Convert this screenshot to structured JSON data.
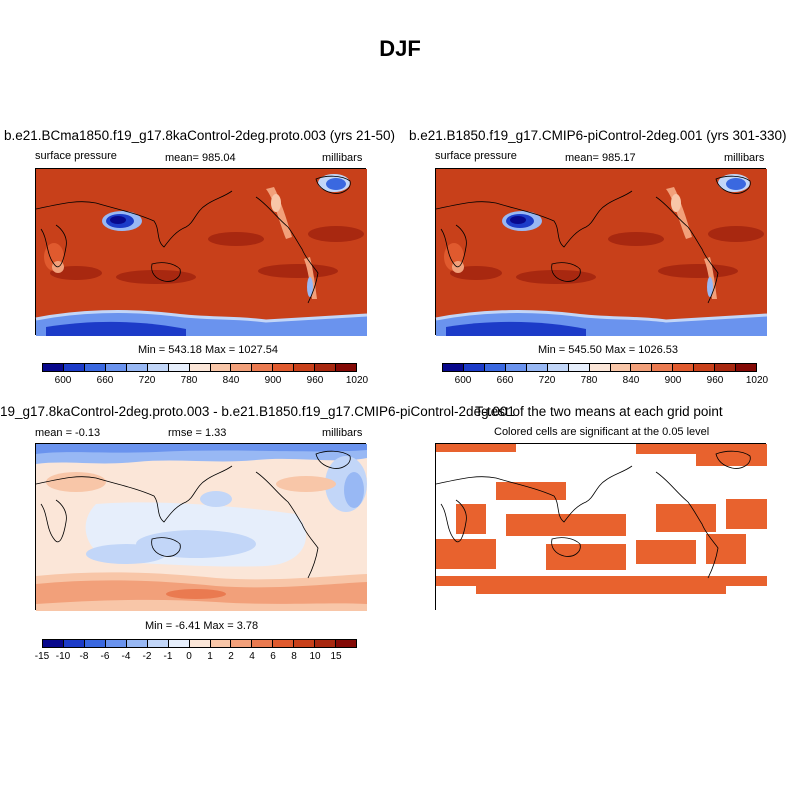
{
  "title": "DJF",
  "panels": {
    "p1": {
      "title": "b.e21.BCma1850.f19_g17.8kaControl-2deg.proto.003 (yrs 21-50)",
      "left": "surface pressure",
      "center": "mean= 985.04",
      "right": "millibars",
      "minmax": "Min = 543.18 Max = 1027.54"
    },
    "p2": {
      "title": "b.e21.B1850.f19_g17.CMIP6-piControl-2deg.001 (yrs 301-330)",
      "left": "surface pressure",
      "center": "mean= 985.17",
      "right": "millibars",
      "minmax": "Min = 545.50 Max = 1026.53"
    },
    "p3": {
      "title": "19_g17.8kaControl-2deg.proto.003 - b.e21.B1850.f19_g17.CMIP6-piControl-2deg.001",
      "left": "mean =  -0.13",
      "center": "rmse =   1.33",
      "right": "millibars",
      "minmax": "Min =  -6.41 Max =  3.78"
    },
    "p4": {
      "title": "T-test of the two means at each grid point",
      "subtitle": "Colored cells are significant at the 0.05 level"
    }
  },
  "colorbars": {
    "pressure": {
      "labels": [
        "600",
        "660",
        "720",
        "780",
        "840",
        "900",
        "960",
        "1020"
      ],
      "colors": [
        "#08088c",
        "#1c3bc8",
        "#3a68e0",
        "#6a93ee",
        "#98b8f4",
        "#c2d6f8",
        "#e6eefb",
        "#fbe6d8",
        "#f8c6a8",
        "#f2a07a",
        "#ea7a50",
        "#e05a2e",
        "#c8401a",
        "#a82810",
        "#840a06"
      ]
    },
    "diff": {
      "labels": [
        "-15",
        "-10",
        "-8",
        "-6",
        "-4",
        "-2",
        "-1",
        "0",
        "1",
        "2",
        "4",
        "6",
        "8",
        "10",
        "15"
      ],
      "colors": [
        "#08088c",
        "#1c3bc8",
        "#3a68e0",
        "#6a93ee",
        "#98b8f4",
        "#c2d6f8",
        "#e6eefb",
        "#fbe6d8",
        "#f8c6a8",
        "#f2a07a",
        "#ea7a50",
        "#e05a2e",
        "#c8401a",
        "#a82810",
        "#840a06"
      ]
    }
  },
  "colors": {
    "high_pressure": "#c8401a",
    "max_pressure": "#a82810",
    "significance": "#e8622e",
    "diff_neutral": "#d8e8f8",
    "diff_positive": "#f5c8a8"
  }
}
